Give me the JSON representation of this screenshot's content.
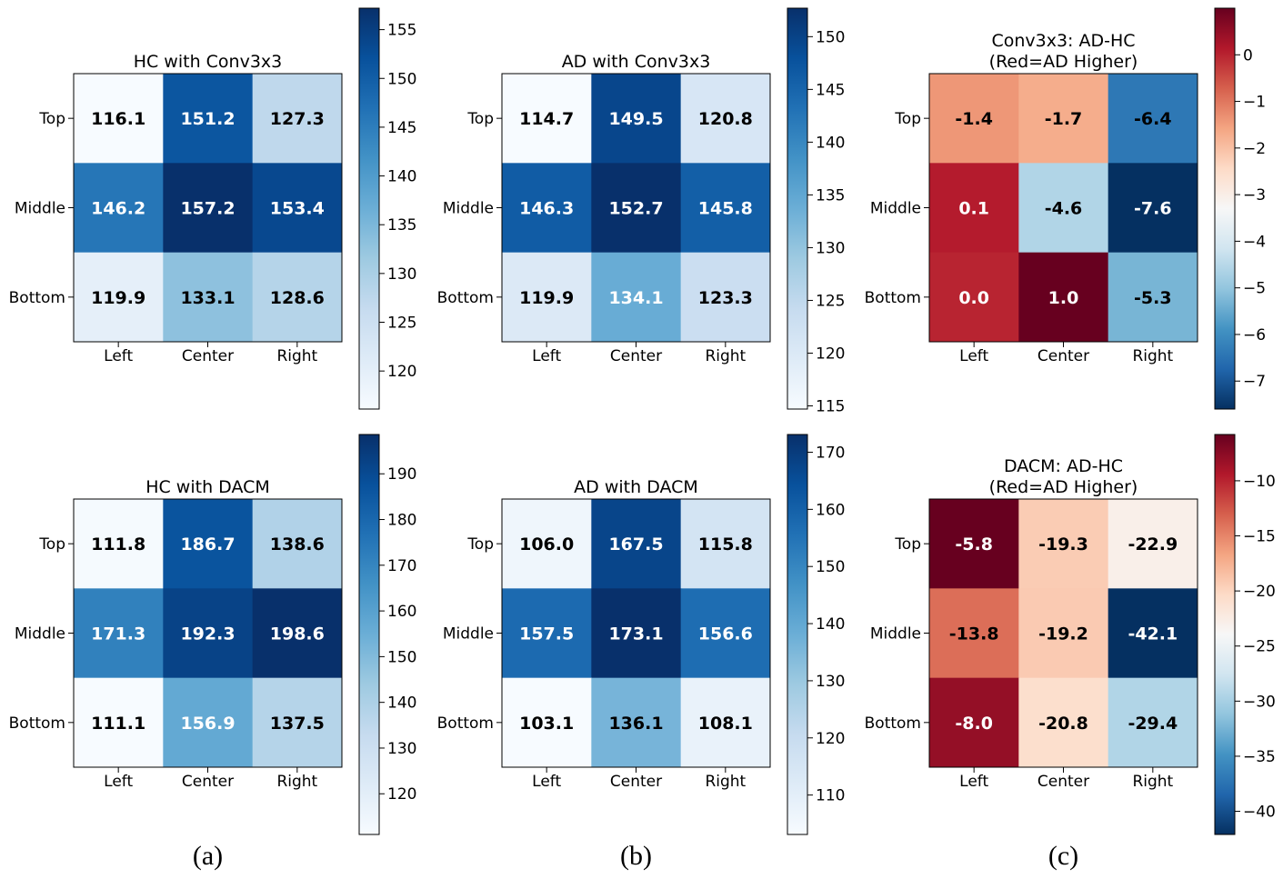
{
  "colors": {
    "blues": [
      "#f7fbff",
      "#deebf7",
      "#c6dbef",
      "#9ecae1",
      "#6baed6",
      "#4292c6",
      "#2171b5",
      "#08519c",
      "#08306b"
    ],
    "rdbu_r": [
      "#053061",
      "#2166ac",
      "#4393c3",
      "#92c5de",
      "#d1e5f0",
      "#f7f7f7",
      "#fddbc7",
      "#f4a582",
      "#d6604d",
      "#b2182b",
      "#67001f"
    ]
  },
  "panel_labels": [
    "(a)",
    "(b)",
    "(c)"
  ],
  "chart_data": [
    {
      "type": "heatmap",
      "title": "HC with Conv3x3",
      "rows": [
        "Top",
        "Middle",
        "Bottom"
      ],
      "cols": [
        "Left",
        "Center",
        "Right"
      ],
      "values": [
        [
          116.1,
          151.2,
          127.3
        ],
        [
          146.2,
          157.2,
          153.4
        ],
        [
          119.9,
          133.1,
          128.6
        ]
      ],
      "colormap": "Blues",
      "vmin": 116.1,
      "vmax": 157.2,
      "colorbar_ticks": [
        120,
        125,
        130,
        135,
        140,
        145,
        150,
        155
      ]
    },
    {
      "type": "heatmap",
      "title": "AD with Conv3x3",
      "rows": [
        "Top",
        "Middle",
        "Bottom"
      ],
      "cols": [
        "Left",
        "Center",
        "Right"
      ],
      "values": [
        [
          114.7,
          149.5,
          120.8
        ],
        [
          146.3,
          152.7,
          145.8
        ],
        [
          119.9,
          134.1,
          123.3
        ]
      ],
      "colormap": "Blues",
      "vmin": 114.7,
      "vmax": 152.7,
      "colorbar_ticks": [
        115,
        120,
        125,
        130,
        135,
        140,
        145,
        150
      ]
    },
    {
      "type": "heatmap",
      "title": "Conv3x3: AD-HC\n(Red=AD Higher)",
      "rows": [
        "Top",
        "Middle",
        "Bottom"
      ],
      "cols": [
        "Left",
        "Center",
        "Right"
      ],
      "values": [
        [
          -1.4,
          -1.7,
          -6.4
        ],
        [
          0.1,
          -4.6,
          -7.6
        ],
        [
          -0.0,
          1.0,
          -5.3
        ]
      ],
      "colormap": "RdBu_r",
      "vmin": -7.6,
      "vmax": 1.0,
      "colorbar_ticks": [
        -7,
        -6,
        -5,
        -4,
        -3,
        -2,
        -1,
        0
      ],
      "colorbar_tick_labels": [
        "−7",
        "−6",
        "−5",
        "−4",
        "−3",
        "−2",
        "−1",
        "0"
      ]
    },
    {
      "type": "heatmap",
      "title": "HC with DACM",
      "rows": [
        "Top",
        "Middle",
        "Bottom"
      ],
      "cols": [
        "Left",
        "Center",
        "Right"
      ],
      "values": [
        [
          111.8,
          186.7,
          138.6
        ],
        [
          171.3,
          192.3,
          198.6
        ],
        [
          111.1,
          156.9,
          137.5
        ]
      ],
      "colormap": "Blues",
      "vmin": 111.1,
      "vmax": 198.6,
      "colorbar_ticks": [
        120,
        130,
        140,
        150,
        160,
        170,
        180,
        190
      ]
    },
    {
      "type": "heatmap",
      "title": "AD with DACM",
      "rows": [
        "Top",
        "Middle",
        "Bottom"
      ],
      "cols": [
        "Left",
        "Center",
        "Right"
      ],
      "values": [
        [
          106.0,
          167.5,
          115.8
        ],
        [
          157.5,
          173.1,
          156.6
        ],
        [
          103.1,
          136.1,
          108.1
        ]
      ],
      "colormap": "Blues",
      "vmin": 103.1,
      "vmax": 173.1,
      "colorbar_ticks": [
        110,
        120,
        130,
        140,
        150,
        160,
        170
      ]
    },
    {
      "type": "heatmap",
      "title": "DACM: AD-HC\n(Red=AD Higher)",
      "rows": [
        "Top",
        "Middle",
        "Bottom"
      ],
      "cols": [
        "Left",
        "Center",
        "Right"
      ],
      "values": [
        [
          -5.8,
          -19.3,
          -22.9
        ],
        [
          -13.8,
          -19.2,
          -42.1
        ],
        [
          -8.0,
          -20.8,
          -29.4
        ]
      ],
      "colormap": "RdBu_r",
      "vmin": -42.1,
      "vmax": -5.8,
      "colorbar_ticks": [
        -40,
        -35,
        -30,
        -25,
        -20,
        -15,
        -10
      ],
      "colorbar_tick_labels": [
        "−40",
        "−35",
        "−30",
        "−25",
        "−20",
        "−15",
        "−10"
      ]
    }
  ]
}
